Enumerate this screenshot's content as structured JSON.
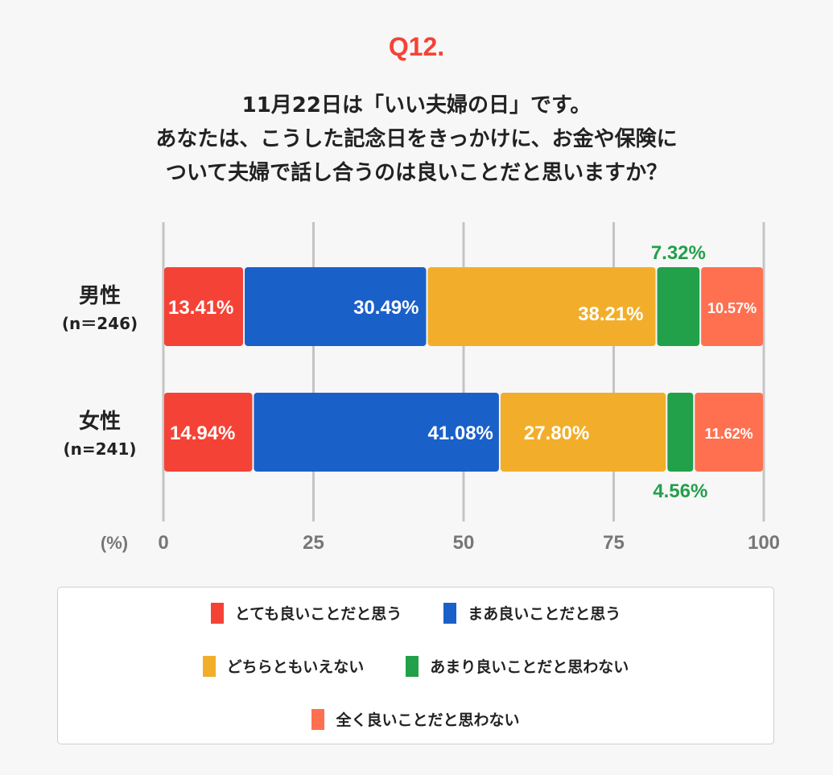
{
  "question_number": "Q12.",
  "title_lines": [
    "11月22日は「いい夫婦の日」です。",
    "あなたは、こうした記念日をきっかけに、お金や保険に",
    "ついて夫婦で話し合うのは良いことだと思いますか？"
  ],
  "chart_data": {
    "type": "bar",
    "orientation": "horizontal-stacked",
    "categories": [
      {
        "name": "男性",
        "n": "(n＝246)"
      },
      {
        "name": "女性",
        "n": "(n=241)"
      }
    ],
    "series": [
      {
        "name": "とても良いことだと思う",
        "color": "#f44336",
        "values": [
          13.41,
          14.94
        ],
        "labels": [
          "13.41%",
          "14.94%"
        ]
      },
      {
        "name": "まあ良いことだと思う",
        "color": "#1a60c9",
        "values": [
          30.49,
          41.08
        ],
        "labels": [
          "30.49%",
          "41.08%"
        ]
      },
      {
        "name": "どちらともいえない",
        "color": "#f2ae2a",
        "values": [
          38.21,
          27.8
        ],
        "labels": [
          "38.21%",
          "27.80%"
        ]
      },
      {
        "name": "あまり良いことだと思わない",
        "color": "#22a04a",
        "values": [
          7.32,
          4.56
        ],
        "labels": [
          "7.32%",
          "4.56%"
        ]
      },
      {
        "name": "全く良いことだと思わない",
        "color": "#ff7050",
        "values": [
          10.57,
          11.62
        ],
        "labels": [
          "10.57%",
          "11.62%"
        ]
      }
    ],
    "xlabel": "(%)",
    "xticks": [
      "0",
      "25",
      "50",
      "75",
      "100"
    ],
    "xlim": [
      0,
      100
    ],
    "grid": true,
    "legend_position": "bottom"
  }
}
